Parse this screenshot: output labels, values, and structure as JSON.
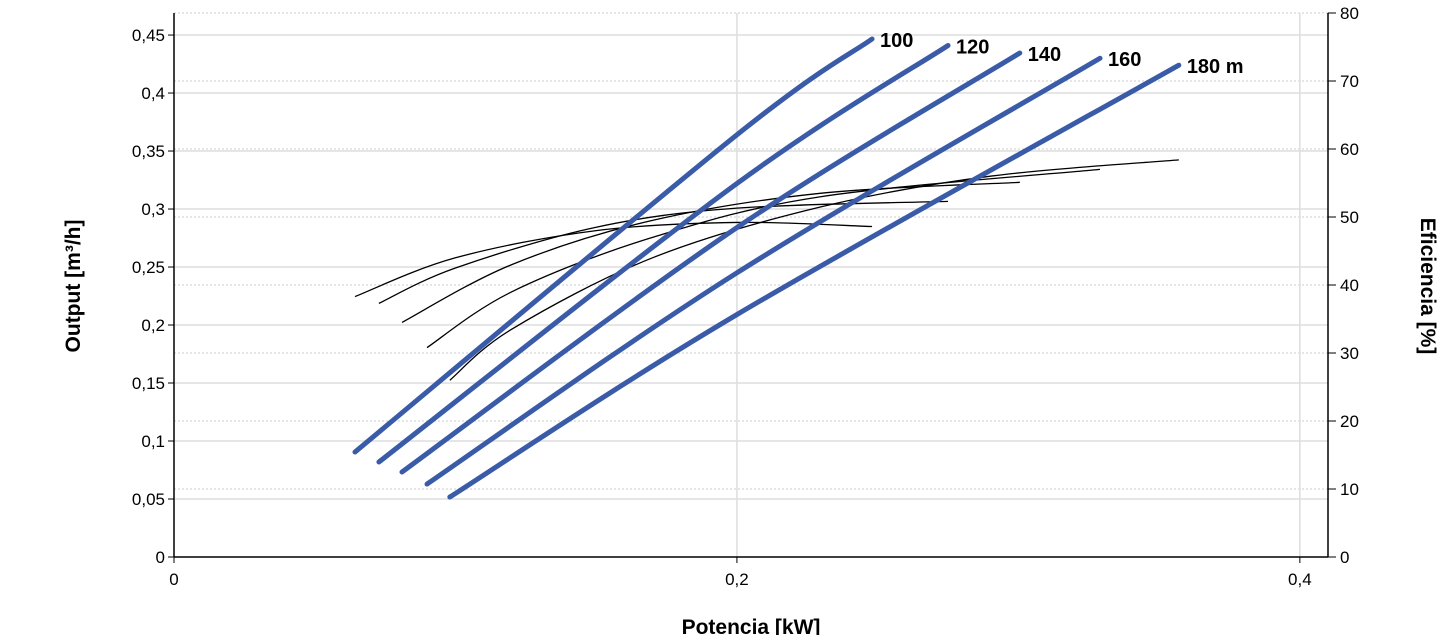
{
  "chart_data": {
    "type": "line",
    "xlabel": "Potencia [kW]",
    "ylabel": "Output [m³/h]",
    "y2label": "Eficiencia [%]",
    "xlim": [
      0,
      0.41
    ],
    "ylim": [
      0,
      0.469
    ],
    "y2lim": [
      0,
      80
    ],
    "x_ticks": [
      "0",
      "0,2",
      "0,4"
    ],
    "x_tick_values": [
      0,
      0.2,
      0.4
    ],
    "y_ticks": [
      "0",
      "0,05",
      "0,1",
      "0,15",
      "0,2",
      "0,25",
      "0,3",
      "0,35",
      "0,4",
      "0,45"
    ],
    "y_tick_values": [
      0,
      0.05,
      0.1,
      0.15,
      0.2,
      0.25,
      0.3,
      0.35,
      0.4,
      0.45
    ],
    "y2_ticks": [
      "0",
      "10",
      "20",
      "30",
      "40",
      "50",
      "60",
      "70",
      "80"
    ],
    "y2_tick_values": [
      0,
      10,
      20,
      30,
      40,
      50,
      60,
      70,
      80
    ],
    "grid": true,
    "colors": {
      "output": "#3a5ba8",
      "efficiency": "#000000",
      "grid": "#dddddd"
    },
    "output_series": [
      {
        "name": "100",
        "points": [
          [
            0.0643,
            0.0905
          ],
          [
            0.2,
            0.364
          ],
          [
            0.248,
            0.4466
          ]
        ]
      },
      {
        "name": "120",
        "points": [
          [
            0.0728,
            0.0819
          ],
          [
            0.2,
            0.322
          ],
          [
            0.275,
            0.441
          ]
        ]
      },
      {
        "name": "140",
        "points": [
          [
            0.081,
            0.0733
          ],
          [
            0.2,
            0.284
          ],
          [
            0.3005,
            0.4345
          ]
        ]
      },
      {
        "name": "160",
        "points": [
          [
            0.0899,
            0.0629
          ],
          [
            0.2,
            0.245
          ],
          [
            0.329,
            0.43
          ]
        ]
      },
      {
        "name": "180 m",
        "points": [
          [
            0.098,
            0.0517
          ],
          [
            0.2,
            0.209
          ],
          [
            0.357,
            0.424
          ]
        ]
      }
    ],
    "efficiency_series": [
      {
        "head": "100",
        "points": [
          [
            0.0643,
            38.3
          ],
          [
            0.1,
            44
          ],
          [
            0.15,
            48
          ],
          [
            0.2,
            49.2
          ],
          [
            0.248,
            48.6
          ]
        ]
      },
      {
        "head": "120",
        "points": [
          [
            0.0728,
            37.3
          ],
          [
            0.1,
            42.5
          ],
          [
            0.15,
            48.5
          ],
          [
            0.2,
            51.3
          ],
          [
            0.275,
            52.3
          ]
        ]
      },
      {
        "head": "140",
        "points": [
          [
            0.081,
            34.5
          ],
          [
            0.12,
            43
          ],
          [
            0.17,
            49.5
          ],
          [
            0.23,
            53.5
          ],
          [
            0.3005,
            55.1
          ]
        ]
      },
      {
        "head": "160",
        "points": [
          [
            0.0899,
            30.8
          ],
          [
            0.12,
            39
          ],
          [
            0.17,
            47
          ],
          [
            0.23,
            53
          ],
          [
            0.329,
            57
          ]
        ]
      },
      {
        "head": "180",
        "points": [
          [
            0.098,
            26
          ],
          [
            0.12,
            33.5
          ],
          [
            0.17,
            44
          ],
          [
            0.23,
            51.5
          ],
          [
            0.29,
            56
          ],
          [
            0.357,
            58.4
          ]
        ]
      }
    ]
  }
}
